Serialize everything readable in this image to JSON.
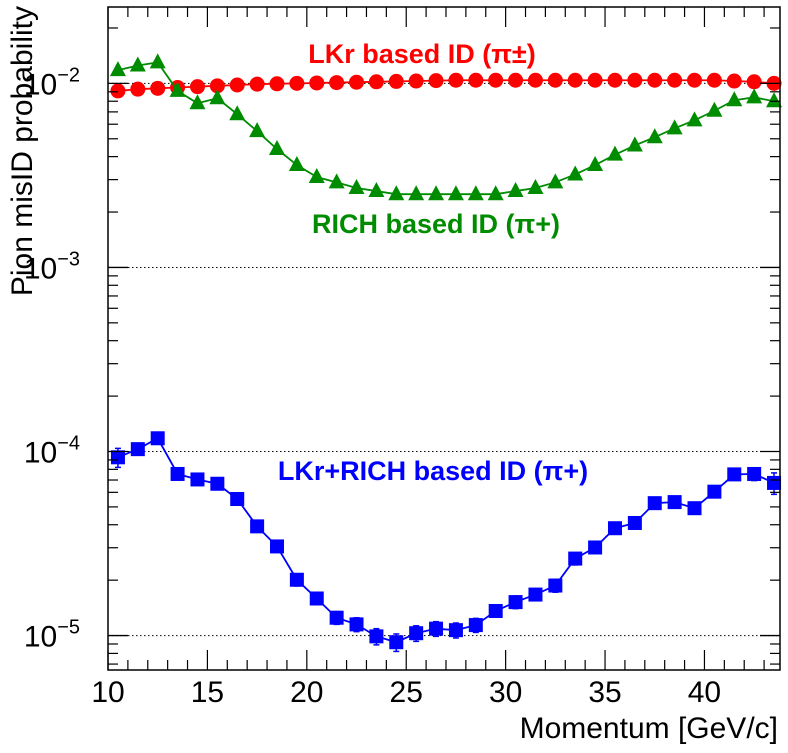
{
  "chart_data": {
    "type": "scatter",
    "xlabel": "Momentum [GeV/c]",
    "ylabel": "Pion misID probability",
    "xlim": [
      10,
      43.8
    ],
    "ylim": [
      6.5e-06,
      0.026
    ],
    "yscale": "log",
    "x_ticks": [
      "10",
      "15",
      "20",
      "25",
      "30",
      "35",
      "40"
    ],
    "y_ticks": [
      {
        "value": 1e-05,
        "base": "10",
        "exp": "−5"
      },
      {
        "value": 0.0001,
        "base": "10",
        "exp": "−4"
      },
      {
        "value": 0.001,
        "base": "10",
        "exp": "−3"
      },
      {
        "value": 0.01,
        "base": "10",
        "exp": "−2"
      }
    ],
    "grid": "horizontal dotted lines at each decade",
    "legend": "none",
    "series": [
      {
        "annotation": "LKr based ID (π±)",
        "color": "#ff0000",
        "marker": "circle",
        "connected": true,
        "x": [
          10.5,
          11.5,
          12.5,
          13.5,
          14.5,
          15.5,
          16.5,
          17.5,
          18.5,
          19.5,
          20.5,
          21.5,
          22.5,
          23.5,
          24.5,
          25.5,
          26.5,
          27.5,
          28.5,
          29.5,
          30.5,
          31.5,
          32.5,
          33.5,
          34.5,
          35.5,
          36.5,
          37.5,
          38.5,
          39.5,
          40.5,
          41.5,
          42.5,
          43.5
        ],
        "y": [
          0.0091,
          0.0093,
          0.0094,
          0.0095,
          0.0096,
          0.0097,
          0.0098,
          0.0099,
          0.00995,
          0.01,
          0.01005,
          0.0101,
          0.01015,
          0.0102,
          0.01025,
          0.0103,
          0.01035,
          0.0104,
          0.0104,
          0.0104,
          0.0104,
          0.0104,
          0.0104,
          0.0104,
          0.0104,
          0.0104,
          0.0104,
          0.0104,
          0.0104,
          0.0104,
          0.0104,
          0.0103,
          0.0102,
          0.01
        ]
      },
      {
        "annotation": "RICH based ID (π+)",
        "color": "#008c00",
        "marker": "triangle",
        "connected": true,
        "x": [
          10.5,
          11.5,
          12.5,
          13.5,
          14.5,
          15.5,
          16.5,
          17.5,
          18.5,
          19.5,
          20.5,
          21.5,
          22.5,
          23.5,
          24.5,
          25.5,
          26.5,
          27.5,
          28.5,
          29.5,
          30.5,
          31.5,
          32.5,
          33.5,
          34.5,
          35.5,
          36.5,
          37.5,
          38.5,
          39.5,
          40.5,
          41.5,
          42.5,
          43.5
        ],
        "y": [
          0.0118,
          0.0125,
          0.013,
          0.0091,
          0.0078,
          0.0083,
          0.0068,
          0.0055,
          0.0044,
          0.0036,
          0.0031,
          0.0029,
          0.0027,
          0.0026,
          0.0025,
          0.0025,
          0.0025,
          0.0025,
          0.0025,
          0.0025,
          0.0026,
          0.0027,
          0.0029,
          0.0032,
          0.0036,
          0.0041,
          0.0046,
          0.0051,
          0.0057,
          0.0063,
          0.0071,
          0.0081,
          0.0084,
          0.008
        ]
      },
      {
        "annotation": "LKr+RICH based ID (π+)",
        "color": "#0000ff",
        "marker": "square",
        "connected": true,
        "x": [
          10.5,
          11.5,
          12.5,
          13.5,
          14.5,
          15.5,
          16.5,
          17.5,
          18.5,
          19.5,
          20.5,
          21.5,
          22.5,
          23.5,
          24.5,
          25.5,
          26.5,
          27.5,
          28.5,
          29.5,
          30.5,
          31.5,
          32.5,
          33.5,
          34.5,
          35.5,
          36.5,
          37.5,
          38.5,
          39.5,
          40.5,
          41.5,
          42.5,
          43.5
        ],
        "y": [
          9.3e-05,
          0.000103,
          0.000118,
          7.55e-05,
          7.05e-05,
          6.68e-05,
          5.52e-05,
          3.92e-05,
          3.05e-05,
          2.01e-05,
          1.59e-05,
          1.25e-05,
          1.15e-05,
          9.9e-06,
          9.2e-06,
          1.03e-05,
          1.09e-05,
          1.07e-05,
          1.14e-05,
          1.36e-05,
          1.52e-05,
          1.67e-05,
          1.87e-05,
          2.62e-05,
          3.01e-05,
          3.83e-05,
          4.09e-05,
          5.24e-05,
          5.31e-05,
          4.92e-05,
          6.05e-05,
          7.51e-05,
          7.55e-05,
          6.75e-05
        ],
        "yerr": [
          1.1e-05,
          6e-06,
          6e-06,
          3e-06,
          3e-06,
          3e-06,
          3e-06,
          2e-06,
          2e-06,
          1.5e-06,
          1.2e-06,
          1e-06,
          1e-06,
          1e-06,
          1e-06,
          1e-06,
          1e-06,
          1e-06,
          1e-06,
          1e-06,
          1.2e-06,
          1.2e-06,
          1.5e-06,
          2e-06,
          2e-06,
          2e-06,
          3e-06,
          3e-06,
          3e-06,
          3e-06,
          4e-06,
          5e-06,
          6e-06,
          9e-06
        ]
      }
    ]
  }
}
